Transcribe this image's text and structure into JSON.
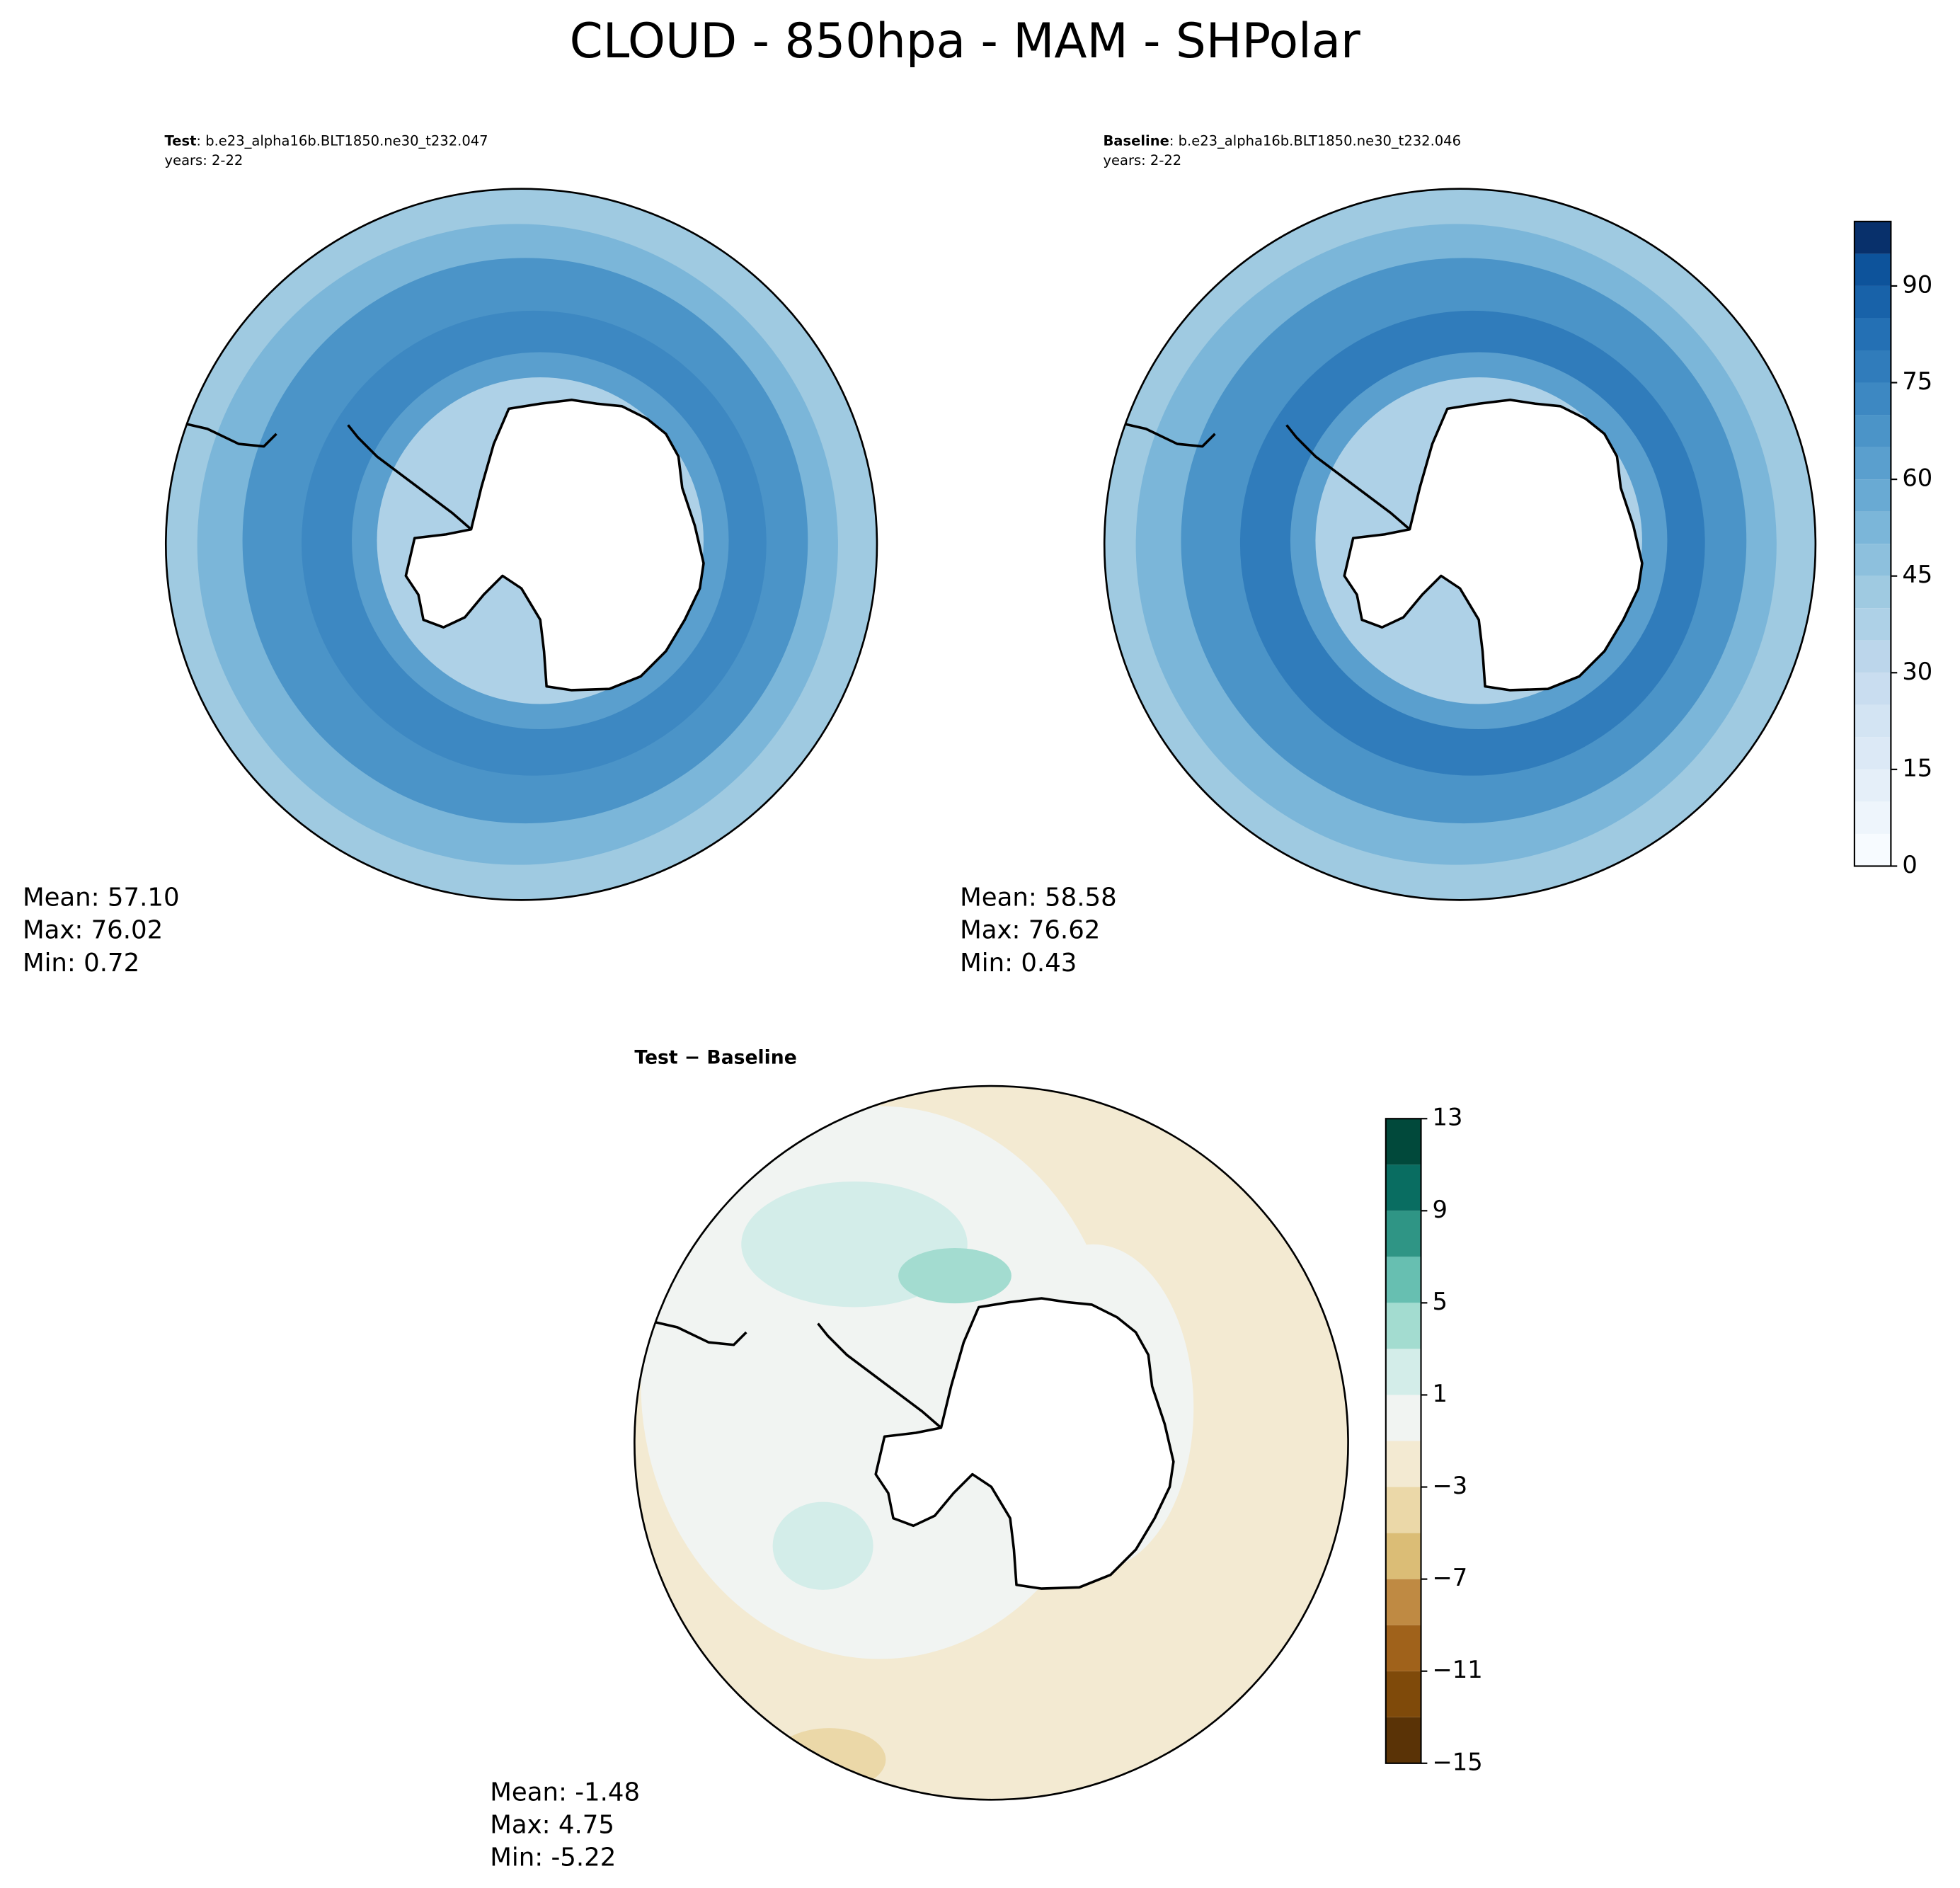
{
  "title": "CLOUD - 850hpa - MAM - SHPolar",
  "chart_data": [
    {
      "type": "contour-map",
      "name": "Test",
      "case_label": ": b.e23_alpha16b.BLT1850.ne30_t232.047",
      "subtitle": "years: 2-22",
      "stats": [
        "Mean: 57.10",
        "Max: 76.02",
        "Min:  0.72"
      ]
    },
    {
      "type": "contour-map",
      "name": "Baseline",
      "case_label": ": b.e23_alpha16b.BLT1850.ne30_t232.046",
      "subtitle": "years: 2-22",
      "stats": [
        "Mean: 58.58",
        "Max: 76.62",
        "Min:  0.43"
      ],
      "colorbar": {
        "ylim": [
          0,
          100
        ],
        "yticks": [
          0,
          15,
          30,
          45,
          60,
          75,
          90
        ],
        "levels": [
          0,
          5,
          10,
          15,
          20,
          25,
          30,
          35,
          40,
          45,
          50,
          55,
          60,
          65,
          70,
          75,
          80,
          85,
          90,
          95,
          100
        ],
        "colors": [
          "#f7fbff",
          "#eef5fc",
          "#e5eff9",
          "#dce9f6",
          "#d3e4f3",
          "#c9ddf0",
          "#bcd6eb",
          "#aed1e7",
          "#9fcae1",
          "#8dc0dd",
          "#7bb6d9",
          "#69aad3",
          "#5a9fce",
          "#4b94c8",
          "#3d88c2",
          "#307cbb",
          "#2470b4",
          "#1862a9",
          "#0d539b",
          "#08306b"
        ]
      }
    },
    {
      "type": "contour-map",
      "name": "Test − Baseline",
      "stats": [
        "Mean: -1.48",
        "Max:  4.75",
        "Min: -5.22"
      ],
      "colorbar": {
        "ylim": [
          -15,
          13
        ],
        "yticks": [
          {
            "value": -15,
            "label": "−15"
          },
          {
            "value": -11,
            "label": "−11"
          },
          {
            "value": -7,
            "label": "−7"
          },
          {
            "value": -3,
            "label": "−3"
          },
          1,
          5,
          9,
          13
        ],
        "levels": [
          -15,
          -13,
          -11,
          -9,
          -7,
          -5,
          -3,
          -1,
          1,
          3,
          5,
          7,
          9,
          11,
          13
        ],
        "colors": [
          "#5a3306",
          "#7f4a0a",
          "#a0621b",
          "#bf8a43",
          "#dbbd76",
          "#ebd8a8",
          "#f3ead2",
          "#f1f4f2",
          "#d3ede9",
          "#a3dcd0",
          "#67bfb1",
          "#2f9585",
          "#096d61",
          "#01493b"
        ]
      }
    }
  ]
}
